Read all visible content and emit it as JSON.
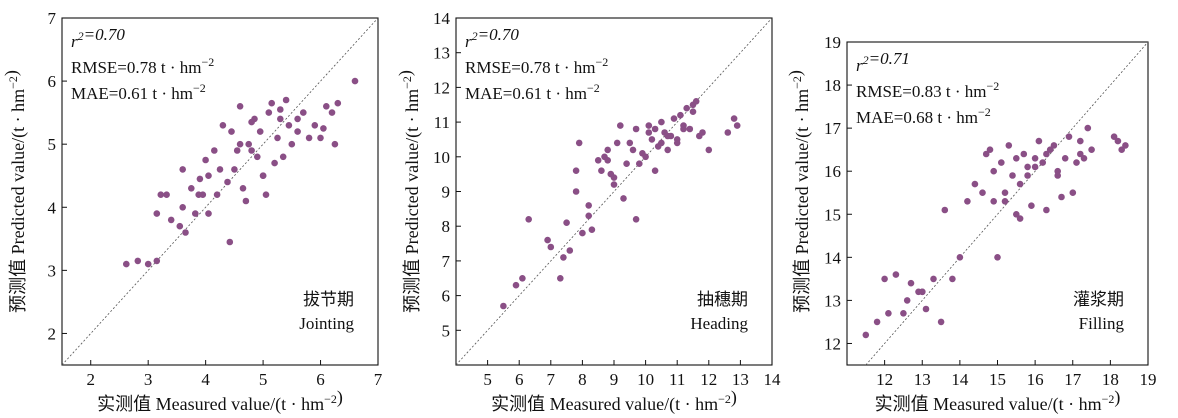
{
  "colors": {
    "point": "#8a4f86",
    "axis": "#111111",
    "diagonal": "#555555"
  },
  "chart_data": [
    {
      "type": "scatter",
      "xlabel": "实测值 Measured value/(t · hm⁻²)",
      "ylabel": "预测值 Predicted value/(t · hm⁻²)",
      "xlim": [
        1.5,
        7
      ],
      "ylim": [
        1.5,
        7
      ],
      "xticks": [
        2,
        3,
        4,
        5,
        6,
        7
      ],
      "yticks": [
        2,
        3,
        4,
        5,
        6,
        7
      ],
      "stats": {
        "r2": "r²=0.70",
        "rmse": "RMSE=0.78 t · hm⁻²",
        "mae": "MAE=0.61 t · hm⁻²"
      },
      "stage_cn": "拔节期",
      "stage_en": "Jointing",
      "points": {
        "x": [
          2.62,
          2.82,
          3.0,
          3.15,
          3.15,
          3.22,
          3.32,
          3.4,
          3.6,
          3.55,
          3.65,
          3.75,
          3.82,
          3.88,
          3.95,
          4.05,
          4.05,
          4.15,
          4.25,
          4.3,
          4.38,
          4.42,
          4.45,
          4.5,
          4.55,
          4.6,
          4.65,
          4.7,
          4.75,
          4.8,
          4.85,
          4.9,
          4.95,
          5.0,
          5.05,
          5.1,
          5.15,
          5.2,
          5.25,
          5.3,
          5.35,
          5.4,
          5.45,
          5.5,
          5.6,
          5.7,
          5.8,
          5.9,
          6.0,
          6.1,
          6.2,
          6.25,
          6.3,
          6.6,
          3.6,
          4.2,
          4.6,
          5.0,
          5.6,
          4.0,
          3.9,
          4.8,
          5.3,
          6.05
        ],
        "y": [
          3.1,
          3.15,
          3.1,
          3.15,
          3.9,
          4.2,
          4.2,
          3.8,
          4.0,
          3.7,
          3.6,
          4.3,
          3.9,
          4.2,
          4.2,
          4.5,
          3.9,
          4.9,
          4.6,
          5.3,
          4.4,
          3.45,
          5.2,
          4.6,
          4.9,
          5.6,
          4.3,
          4.1,
          5.0,
          4.9,
          5.4,
          4.8,
          5.2,
          4.5,
          4.2,
          5.5,
          5.65,
          4.7,
          5.1,
          5.4,
          4.8,
          5.7,
          5.3,
          5.0,
          5.4,
          5.5,
          5.1,
          5.3,
          5.1,
          5.6,
          5.5,
          5.0,
          5.65,
          6.0,
          4.6,
          4.2,
          5.0,
          4.5,
          5.2,
          4.75,
          4.45,
          5.35,
          5.55,
          5.25
        ]
      }
    },
    {
      "type": "scatter",
      "xlabel": "实测值 Measured value/(t · hm⁻²)",
      "ylabel": "预测值 Predicted value/(t · hm⁻²)",
      "xlim": [
        4,
        14
      ],
      "ylim": [
        4,
        14
      ],
      "xticks": [
        5,
        6,
        7,
        8,
        9,
        10,
        11,
        12,
        13,
        14
      ],
      "yticks": [
        5,
        6,
        7,
        8,
        9,
        10,
        11,
        12,
        13,
        14
      ],
      "stats": {
        "r2": "r²=0.70",
        "rmse": "RMSE=0.78 t · hm⁻²",
        "mae": "MAE=0.61 t · hm⁻²"
      },
      "stage_cn": "抽穗期",
      "stage_en": "Heading",
      "points": {
        "x": [
          5.5,
          5.9,
          6.1,
          6.3,
          6.9,
          7.0,
          7.3,
          7.5,
          7.6,
          7.8,
          7.9,
          8.0,
          8.2,
          8.3,
          8.5,
          8.6,
          8.7,
          8.8,
          8.9,
          9.0,
          9.1,
          9.2,
          9.4,
          9.5,
          9.6,
          9.7,
          9.8,
          9.9,
          10.0,
          10.1,
          10.2,
          10.3,
          10.4,
          10.5,
          10.6,
          10.7,
          10.8,
          10.9,
          11.0,
          11.1,
          11.2,
          11.3,
          11.4,
          11.5,
          11.6,
          11.7,
          11.8,
          12.0,
          12.8,
          12.9,
          7.8,
          8.2,
          9.0,
          9.7,
          10.1,
          10.5,
          11.0,
          11.2,
          10.3,
          9.3,
          8.8,
          10.7,
          11.5,
          12.6,
          7.4
        ],
        "y": [
          5.7,
          6.3,
          6.5,
          8.2,
          7.6,
          7.4,
          6.5,
          8.1,
          7.3,
          9.6,
          10.4,
          7.8,
          8.6,
          7.9,
          9.9,
          9.6,
          10.0,
          10.2,
          9.5,
          9.4,
          10.4,
          10.9,
          9.8,
          10.4,
          10.2,
          10.8,
          9.8,
          10.1,
          10.0,
          10.9,
          10.5,
          10.8,
          10.3,
          11.0,
          10.7,
          10.2,
          10.6,
          11.1,
          10.4,
          11.2,
          10.9,
          11.4,
          10.8,
          11.5,
          11.6,
          10.6,
          10.7,
          10.2,
          11.1,
          10.9,
          9.0,
          8.3,
          9.2,
          8.2,
          10.7,
          10.4,
          10.5,
          10.8,
          9.6,
          8.8,
          9.9,
          10.6,
          11.3,
          10.7,
          7.1
        ]
      }
    },
    {
      "type": "scatter",
      "xlabel": "实测值 Measured value/(t · hm⁻²)",
      "ylabel": "预测值 Predicted value/(t · hm⁻²)",
      "xlim": [
        11,
        19
      ],
      "ylim": [
        11.5,
        19
      ],
      "xticks": [
        12,
        13,
        14,
        15,
        16,
        17,
        18,
        19
      ],
      "yticks": [
        12,
        13,
        14,
        15,
        16,
        17,
        18,
        19
      ],
      "stats": {
        "r2": "r²=0.71",
        "rmse": "RMSE=0.83 t · hm⁻²",
        "mae": "MAE=0.68 t · hm⁻²"
      },
      "stage_cn": "灌浆期",
      "stage_en": "Filling",
      "points": {
        "x": [
          11.5,
          11.8,
          12.0,
          12.1,
          12.3,
          12.5,
          12.7,
          12.9,
          13.0,
          13.1,
          13.3,
          13.5,
          13.6,
          13.8,
          14.0,
          14.2,
          14.4,
          14.6,
          14.7,
          14.8,
          14.9,
          15.0,
          15.1,
          15.2,
          15.3,
          15.4,
          15.5,
          15.6,
          15.7,
          15.8,
          15.9,
          16.0,
          16.1,
          16.2,
          16.3,
          16.4,
          16.5,
          16.6,
          16.7,
          16.8,
          17.0,
          17.1,
          17.2,
          17.3,
          17.4,
          17.5,
          18.1,
          18.2,
          18.3,
          18.4,
          15.5,
          16.0,
          16.3,
          14.9,
          15.6,
          16.6,
          17.2,
          15.2,
          13.0,
          12.6,
          15.8,
          16.9
        ],
        "y": [
          12.2,
          12.5,
          13.5,
          12.7,
          13.6,
          12.7,
          13.4,
          13.2,
          13.2,
          12.8,
          13.5,
          12.5,
          15.1,
          13.5,
          14.0,
          15.3,
          15.7,
          15.5,
          16.4,
          16.5,
          15.3,
          14.0,
          16.2,
          15.5,
          16.6,
          15.9,
          16.3,
          14.9,
          16.4,
          16.1,
          15.2,
          16.3,
          16.7,
          16.2,
          15.1,
          16.5,
          16.6,
          16.0,
          15.4,
          16.3,
          15.5,
          16.2,
          16.7,
          16.3,
          17.0,
          16.5,
          16.8,
          16.7,
          16.5,
          16.6,
          15.0,
          16.1,
          16.4,
          16.0,
          15.7,
          15.9,
          16.4,
          15.3,
          13.2,
          13.0,
          15.9,
          16.8
        ]
      }
    }
  ]
}
